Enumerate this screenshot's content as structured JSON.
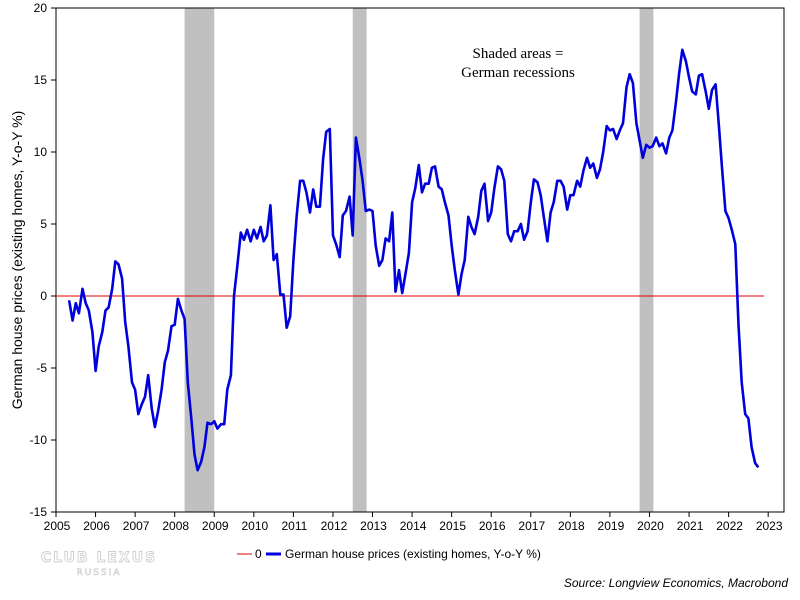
{
  "chart_data": {
    "type": "line",
    "title": "",
    "xlabel": "",
    "ylabel": "German house prices (existing homes, Y-o-Y %)",
    "xlim": [
      2005,
      2023.4
    ],
    "ylim": [
      -15,
      20
    ],
    "x_ticks": [
      "2005",
      "2006",
      "2007",
      "2008",
      "2009",
      "2010",
      "2011",
      "2012",
      "2013",
      "2014",
      "2015",
      "2016",
      "2017",
      "2018",
      "2019",
      "2020",
      "2021",
      "2022",
      "2023"
    ],
    "y_ticks": [
      "-15",
      "-10",
      "-5",
      "0",
      "5",
      "10",
      "15",
      "20"
    ],
    "grid": false,
    "legend_position": "bottom",
    "annotation": [
      "Shaded areas =",
      "German recessions"
    ],
    "recessions": [
      [
        2008.25,
        2009.0
      ],
      [
        2012.5,
        2012.85
      ],
      [
        2019.75,
        2020.1
      ]
    ],
    "reference_line": {
      "name": "0",
      "value": 0,
      "color": "#e00000"
    },
    "series": [
      {
        "name": "German house prices (existing homes, Y-o-Y %)",
        "color": "#0000dd",
        "points": [
          [
            2005.33,
            -0.3
          ],
          [
            2005.42,
            -1.7
          ],
          [
            2005.5,
            -0.5
          ],
          [
            2005.58,
            -1.2
          ],
          [
            2005.67,
            0.5
          ],
          [
            2005.75,
            -0.5
          ],
          [
            2005.83,
            -1.0
          ],
          [
            2005.92,
            -2.5
          ],
          [
            2006.0,
            -5.2
          ],
          [
            2006.08,
            -3.5
          ],
          [
            2006.17,
            -2.5
          ],
          [
            2006.25,
            -1.0
          ],
          [
            2006.33,
            -0.8
          ],
          [
            2006.42,
            0.5
          ],
          [
            2006.5,
            2.4
          ],
          [
            2006.58,
            2.2
          ],
          [
            2006.67,
            1.2
          ],
          [
            2006.75,
            -1.8
          ],
          [
            2006.83,
            -3.5
          ],
          [
            2006.92,
            -6.0
          ],
          [
            2007.0,
            -6.5
          ],
          [
            2007.08,
            -8.2
          ],
          [
            2007.17,
            -7.5
          ],
          [
            2007.25,
            -7.0
          ],
          [
            2007.33,
            -5.5
          ],
          [
            2007.42,
            -7.8
          ],
          [
            2007.5,
            -9.1
          ],
          [
            2007.58,
            -8.0
          ],
          [
            2007.67,
            -6.5
          ],
          [
            2007.75,
            -4.6
          ],
          [
            2007.83,
            -3.8
          ],
          [
            2007.92,
            -2.1
          ],
          [
            2008.0,
            -2.0
          ],
          [
            2008.08,
            -0.2
          ],
          [
            2008.17,
            -1.0
          ],
          [
            2008.25,
            -1.6
          ],
          [
            2008.33,
            -6.0
          ],
          [
            2008.42,
            -8.5
          ],
          [
            2008.5,
            -11.0
          ],
          [
            2008.58,
            -12.1
          ],
          [
            2008.67,
            -11.5
          ],
          [
            2008.75,
            -10.5
          ],
          [
            2008.83,
            -8.8
          ],
          [
            2008.92,
            -8.9
          ],
          [
            2009.0,
            -8.7
          ],
          [
            2009.08,
            -9.2
          ],
          [
            2009.17,
            -8.9
          ],
          [
            2009.25,
            -8.9
          ],
          [
            2009.33,
            -6.5
          ],
          [
            2009.42,
            -5.5
          ],
          [
            2009.5,
            0.0
          ],
          [
            2009.58,
            2.0
          ],
          [
            2009.67,
            4.4
          ],
          [
            2009.75,
            3.9
          ],
          [
            2009.83,
            4.6
          ],
          [
            2009.92,
            3.8
          ],
          [
            2010.0,
            4.6
          ],
          [
            2010.08,
            4.0
          ],
          [
            2010.17,
            4.8
          ],
          [
            2010.25,
            3.8
          ],
          [
            2010.33,
            4.2
          ],
          [
            2010.42,
            6.3
          ],
          [
            2010.5,
            2.5
          ],
          [
            2010.58,
            2.9
          ],
          [
            2010.67,
            0.1
          ],
          [
            2010.75,
            0.1
          ],
          [
            2010.83,
            -2.2
          ],
          [
            2010.92,
            -1.4
          ],
          [
            2011.0,
            2.5
          ],
          [
            2011.08,
            5.5
          ],
          [
            2011.17,
            8.0
          ],
          [
            2011.25,
            8.0
          ],
          [
            2011.33,
            7.2
          ],
          [
            2011.42,
            5.8
          ],
          [
            2011.5,
            7.4
          ],
          [
            2011.58,
            6.2
          ],
          [
            2011.67,
            6.2
          ],
          [
            2011.75,
            9.5
          ],
          [
            2011.83,
            11.4
          ],
          [
            2011.92,
            11.6
          ],
          [
            2012.0,
            4.2
          ],
          [
            2012.08,
            3.6
          ],
          [
            2012.17,
            2.7
          ],
          [
            2012.25,
            5.6
          ],
          [
            2012.33,
            5.9
          ],
          [
            2012.42,
            6.9
          ],
          [
            2012.5,
            4.2
          ],
          [
            2012.58,
            11.0
          ],
          [
            2012.67,
            9.5
          ],
          [
            2012.75,
            8.0
          ],
          [
            2012.83,
            5.9
          ],
          [
            2012.92,
            6.0
          ],
          [
            2013.0,
            5.9
          ],
          [
            2013.08,
            3.5
          ],
          [
            2013.17,
            2.1
          ],
          [
            2013.25,
            2.5
          ],
          [
            2013.33,
            4.0
          ],
          [
            2013.42,
            3.8
          ],
          [
            2013.5,
            5.8
          ],
          [
            2013.58,
            0.3
          ],
          [
            2013.67,
            1.8
          ],
          [
            2013.75,
            0.2
          ],
          [
            2013.83,
            1.5
          ],
          [
            2013.92,
            3.0
          ],
          [
            2014.0,
            6.5
          ],
          [
            2014.08,
            7.5
          ],
          [
            2014.17,
            9.1
          ],
          [
            2014.25,
            7.2
          ],
          [
            2014.33,
            7.8
          ],
          [
            2014.42,
            7.8
          ],
          [
            2014.5,
            8.9
          ],
          [
            2014.58,
            9.0
          ],
          [
            2014.67,
            7.6
          ],
          [
            2014.75,
            7.4
          ],
          [
            2014.83,
            6.5
          ],
          [
            2014.92,
            5.6
          ],
          [
            2015.0,
            3.5
          ],
          [
            2015.08,
            1.8
          ],
          [
            2015.17,
            0.1
          ],
          [
            2015.25,
            1.5
          ],
          [
            2015.33,
            2.5
          ],
          [
            2015.42,
            5.5
          ],
          [
            2015.5,
            4.8
          ],
          [
            2015.58,
            4.3
          ],
          [
            2015.67,
            5.5
          ],
          [
            2015.75,
            7.3
          ],
          [
            2015.83,
            7.8
          ],
          [
            2015.92,
            5.2
          ],
          [
            2016.0,
            5.8
          ],
          [
            2016.08,
            7.5
          ],
          [
            2016.17,
            9.0
          ],
          [
            2016.25,
            8.8
          ],
          [
            2016.33,
            8.0
          ],
          [
            2016.42,
            4.3
          ],
          [
            2016.5,
            3.8
          ],
          [
            2016.58,
            4.5
          ],
          [
            2016.67,
            4.5
          ],
          [
            2016.75,
            5.0
          ],
          [
            2016.83,
            3.9
          ],
          [
            2016.92,
            4.5
          ],
          [
            2017.0,
            6.5
          ],
          [
            2017.08,
            8.1
          ],
          [
            2017.17,
            7.9
          ],
          [
            2017.25,
            7.0
          ],
          [
            2017.33,
            5.5
          ],
          [
            2017.42,
            3.8
          ],
          [
            2017.5,
            5.8
          ],
          [
            2017.58,
            6.5
          ],
          [
            2017.67,
            8.0
          ],
          [
            2017.75,
            8.0
          ],
          [
            2017.83,
            7.6
          ],
          [
            2017.92,
            6.0
          ],
          [
            2018.0,
            7.0
          ],
          [
            2018.08,
            7.0
          ],
          [
            2018.17,
            8.0
          ],
          [
            2018.25,
            7.6
          ],
          [
            2018.33,
            8.7
          ],
          [
            2018.42,
            9.6
          ],
          [
            2018.5,
            8.9
          ],
          [
            2018.58,
            9.2
          ],
          [
            2018.67,
            8.2
          ],
          [
            2018.75,
            8.8
          ],
          [
            2018.83,
            10.0
          ],
          [
            2018.92,
            11.8
          ],
          [
            2019.0,
            11.5
          ],
          [
            2019.08,
            11.6
          ],
          [
            2019.17,
            10.9
          ],
          [
            2019.25,
            11.5
          ],
          [
            2019.33,
            12.0
          ],
          [
            2019.42,
            14.5
          ],
          [
            2019.5,
            15.4
          ],
          [
            2019.58,
            14.8
          ],
          [
            2019.67,
            12.0
          ],
          [
            2019.75,
            10.8
          ],
          [
            2019.83,
            9.6
          ],
          [
            2019.92,
            10.5
          ],
          [
            2020.0,
            10.3
          ],
          [
            2020.08,
            10.4
          ],
          [
            2020.17,
            11.0
          ],
          [
            2020.25,
            10.4
          ],
          [
            2020.33,
            10.6
          ],
          [
            2020.42,
            9.9
          ],
          [
            2020.5,
            11.0
          ],
          [
            2020.58,
            11.5
          ],
          [
            2020.67,
            13.5
          ],
          [
            2020.75,
            15.5
          ],
          [
            2020.83,
            17.1
          ],
          [
            2020.92,
            16.3
          ],
          [
            2021.0,
            15.2
          ],
          [
            2021.08,
            14.2
          ],
          [
            2021.17,
            14.0
          ],
          [
            2021.25,
            15.3
          ],
          [
            2021.33,
            15.4
          ],
          [
            2021.42,
            14.2
          ],
          [
            2021.5,
            13.0
          ],
          [
            2021.58,
            14.3
          ],
          [
            2021.67,
            14.7
          ],
          [
            2021.75,
            12.0
          ],
          [
            2021.83,
            9.0
          ],
          [
            2021.92,
            5.9
          ],
          [
            2022.0,
            5.4
          ],
          [
            2022.08,
            4.6
          ],
          [
            2022.17,
            3.6
          ],
          [
            2022.25,
            -2.0
          ],
          [
            2022.33,
            -6.0
          ],
          [
            2022.42,
            -8.2
          ],
          [
            2022.5,
            -8.5
          ],
          [
            2022.58,
            -10.5
          ],
          [
            2022.67,
            -11.6
          ],
          [
            2022.75,
            -11.9
          ]
        ]
      }
    ]
  },
  "legend": {
    "items": [
      {
        "label": "0",
        "color": "#e00000"
      },
      {
        "label": "German house prices (existing homes, Y-o-Y %)",
        "color": "#0000dd"
      }
    ]
  },
  "watermark": {
    "line1": "CLUB LEXUS",
    "line2": "RUSSIA"
  },
  "source": "Source: Longview Economics, Macrobond"
}
